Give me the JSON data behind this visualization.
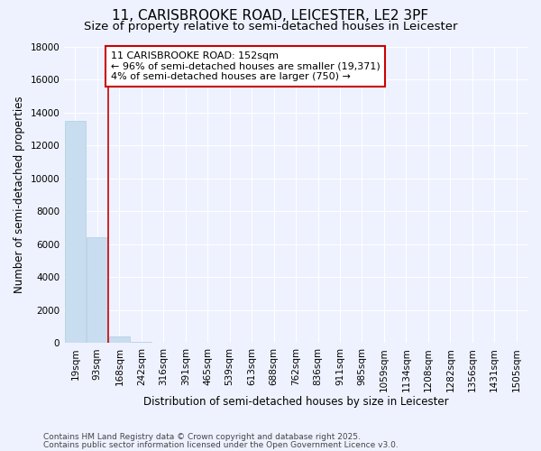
{
  "title_line1": "11, CARISBROOKE ROAD, LEICESTER, LE2 3PF",
  "title_line2": "Size of property relative to semi-detached houses in Leicester",
  "xlabel": "Distribution of semi-detached houses by size in Leicester",
  "ylabel": "Number of semi-detached properties",
  "categories": [
    "19sqm",
    "93sqm",
    "168sqm",
    "242sqm",
    "316sqm",
    "391sqm",
    "465sqm",
    "539sqm",
    "613sqm",
    "688sqm",
    "762sqm",
    "836sqm",
    "911sqm",
    "985sqm",
    "1059sqm",
    "1134sqm",
    "1208sqm",
    "1282sqm",
    "1356sqm",
    "1431sqm",
    "1505sqm"
  ],
  "values": [
    13500,
    6400,
    380,
    100,
    0,
    0,
    0,
    0,
    0,
    0,
    0,
    0,
    0,
    0,
    0,
    0,
    0,
    0,
    0,
    0,
    0
  ],
  "bar_color": "#c8ddf0",
  "bar_edgecolor": "#b0cce0",
  "property_line_color": "#cc0000",
  "annotation_text": "11 CARISBROOKE ROAD: 152sqm\n← 96% of semi-detached houses are smaller (19,371)\n4% of semi-detached houses are larger (750) →",
  "annotation_box_facecolor": "#ffffff",
  "annotation_box_edgecolor": "#cc0000",
  "ylim": [
    0,
    18000
  ],
  "yticks": [
    0,
    2000,
    4000,
    6000,
    8000,
    10000,
    12000,
    14000,
    16000,
    18000
  ],
  "background_color": "#eef2ff",
  "footer_line1": "Contains HM Land Registry data © Crown copyright and database right 2025.",
  "footer_line2": "Contains public sector information licensed under the Open Government Licence v3.0.",
  "title_fontsize": 11,
  "subtitle_fontsize": 9.5,
  "axis_label_fontsize": 8.5,
  "tick_fontsize": 7.5,
  "annotation_fontsize": 8,
  "footer_fontsize": 6.5
}
